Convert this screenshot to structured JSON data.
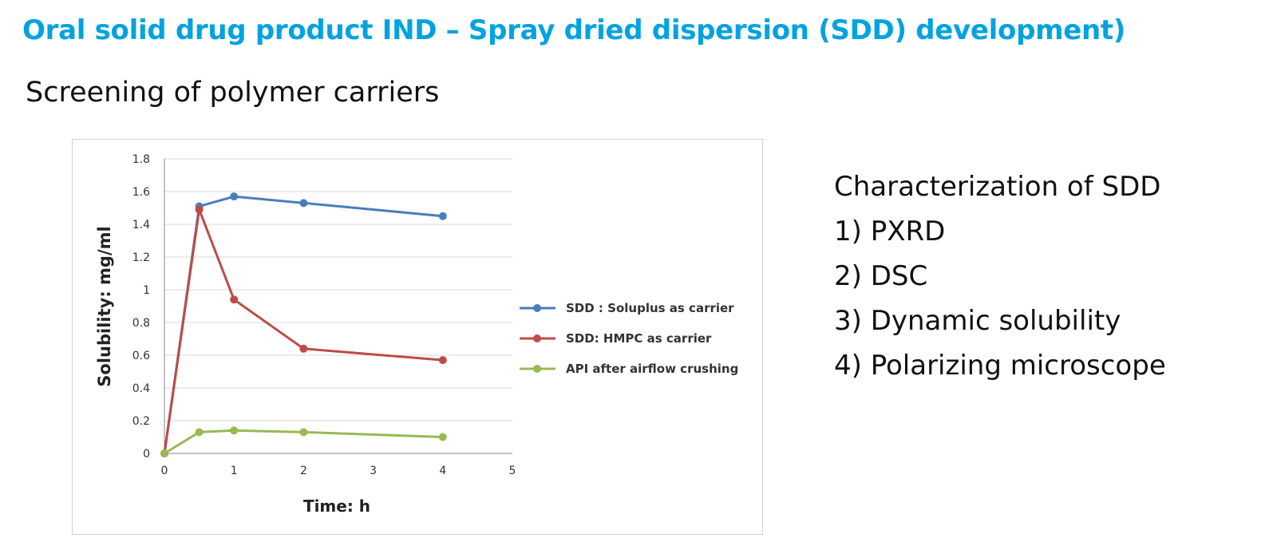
{
  "title": "Oral solid drug product IND – Spray dried dispersion (SDD) development)",
  "subtitle": "Screening of polymer carriers",
  "side_panel": {
    "heading": "Characterization of SDD",
    "items": [
      "1) PXRD",
      "2) DSC",
      "3) Dynamic solubility",
      "4) Polarizing microscope"
    ]
  },
  "chart_data": {
    "type": "line",
    "xlabel": "Time: h",
    "ylabel": "Solubility: mg/ml",
    "xlim": [
      0,
      5
    ],
    "ylim": [
      0,
      1.8
    ],
    "x_ticks": [
      "0",
      "1",
      "2",
      "3",
      "4",
      "5"
    ],
    "y_ticks": [
      "0",
      "0.2",
      "0.4",
      "0.6",
      "0.8",
      "1",
      "1.2",
      "1.4",
      "1.6",
      "1.8"
    ],
    "grid": "horizontal",
    "legend_position": "right",
    "series": [
      {
        "name": "SDD : Soluplus as carrier",
        "color": "#4a7ebb",
        "x": [
          0,
          0.5,
          1,
          2,
          4
        ],
        "y": [
          0,
          1.51,
          1.57,
          1.53,
          1.45
        ]
      },
      {
        "name": "SDD: HMPC as carrier",
        "color": "#be4b48",
        "x": [
          0,
          0.5,
          1,
          2,
          4
        ],
        "y": [
          0,
          1.49,
          0.94,
          0.64,
          0.57
        ]
      },
      {
        "name": "API after airflow crushing",
        "color": "#98b954",
        "x": [
          0,
          0.5,
          1,
          2,
          4
        ],
        "y": [
          0,
          0.13,
          0.14,
          0.13,
          0.1
        ]
      }
    ]
  }
}
